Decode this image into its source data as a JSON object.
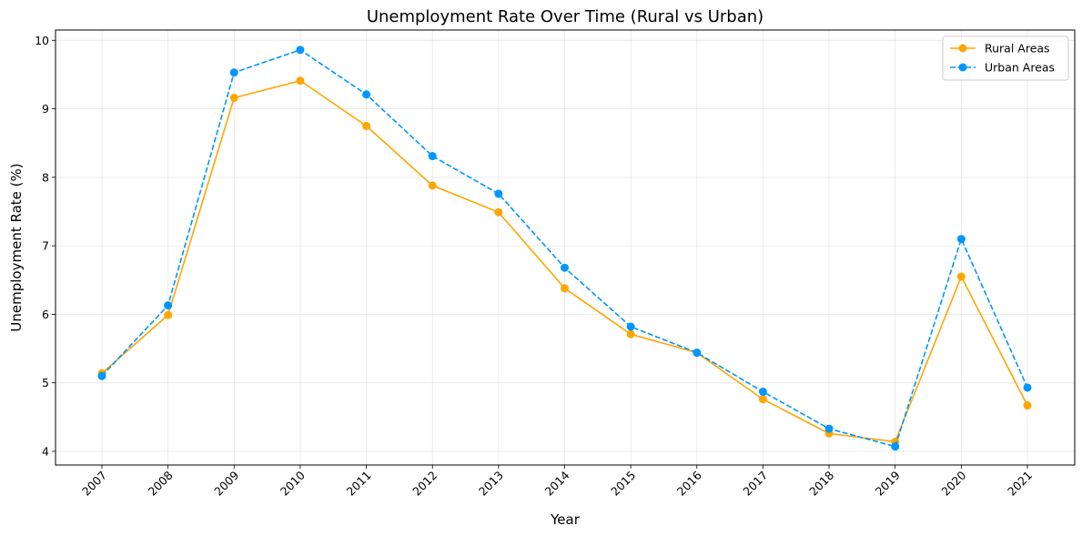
{
  "chart_data": {
    "type": "line",
    "title": "Unemployment Rate Over Time (Rural vs Urban)",
    "xlabel": "Year",
    "ylabel": "Unemployment Rate (%)",
    "categories": [
      "2007",
      "2008",
      "2009",
      "2010",
      "2011",
      "2012",
      "2013",
      "2014",
      "2015",
      "2016",
      "2017",
      "2018",
      "2019",
      "2020",
      "2021"
    ],
    "yticks": [
      4,
      5,
      6,
      7,
      8,
      9,
      10
    ],
    "ylim": [
      3.8,
      10.15
    ],
    "grid": true,
    "legend_position": "top-right",
    "series": [
      {
        "name": "Rural Areas",
        "color": "#FFA500",
        "line_style": "solid",
        "marker": "circle",
        "values": [
          5.14,
          5.99,
          9.16,
          9.41,
          8.75,
          7.88,
          7.49,
          6.38,
          5.71,
          5.44,
          4.76,
          4.26,
          4.14,
          6.55,
          4.67
        ]
      },
      {
        "name": "Urban Areas",
        "color": "#0096FF",
        "line_style": "dashed",
        "marker": "circle",
        "values": [
          5.1,
          6.13,
          9.53,
          9.86,
          9.21,
          8.31,
          7.76,
          6.68,
          5.82,
          5.44,
          4.87,
          4.33,
          4.07,
          7.1,
          4.93
        ]
      }
    ]
  }
}
